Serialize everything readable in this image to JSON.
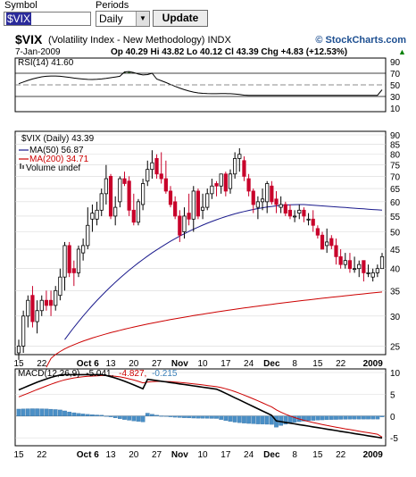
{
  "form": {
    "symbol_label": "Symbol",
    "symbol_value": "$VIX",
    "periods_label": "Periods",
    "periods_value": "Daily",
    "update_label": "Update"
  },
  "header": {
    "ticker": "$VIX",
    "name": "(Volatility Index - New Methodology) INDX",
    "brand": "© StockCharts.com",
    "date": "7-Jan-2009",
    "quote": "Op 40.29  Hi 43.82  Lo 40.12  Cl 43.39  Chg +4.83 (+12.53%)",
    "quote_arrow": "▲"
  },
  "rsi_panel": {
    "legend": "RSI(14) 41.60",
    "ticks": [
      "90",
      "70",
      "50",
      "30",
      "10"
    ]
  },
  "price_panel": {
    "legend_main": "$VIX (Daily) 43.39",
    "legend_ma50": "MA(50) 56.87",
    "legend_ma200": "MA(200) 34.71",
    "legend_volume": "Volume undef",
    "ticks": [
      "90",
      "85",
      "80",
      "75",
      "70",
      "65",
      "60",
      "55",
      "50",
      "45",
      "40",
      "35",
      "30",
      "25"
    ]
  },
  "macd_panel": {
    "legend_prefix": "MACD(12,26,9)",
    "macd_value": "-5.041,",
    "signal_value": "-4.827,",
    "hist_value": "-0.215",
    "ticks": [
      "10",
      "5",
      "0",
      "-5"
    ]
  },
  "x_axis": {
    "labels": [
      "15",
      "22",
      "Oct 6",
      "13",
      "20",
      "27",
      "Nov",
      "10",
      "17",
      "24",
      "Dec",
      "8",
      "15",
      "22",
      "2009"
    ]
  },
  "colors": {
    "up": "#ffffff",
    "down": "#c8002a",
    "ma50": "#1a1a8c",
    "ma200": "#cc0000",
    "rsi_fill": "#4d8a3d",
    "hist": "#4a8fc6",
    "macd_signal": "#cc0000",
    "brand_blue": "#1d4f91"
  },
  "chart_data": [
    {
      "type": "candlestick",
      "title": "$VIX (Daily) 43.39",
      "x": [
        "Sep 15",
        "Sep 16",
        "Sep 17",
        "Sep 18",
        "Sep 19",
        "Sep 22",
        "Sep 23",
        "Sep 24",
        "Sep 25",
        "Sep 26",
        "Sep 29",
        "Sep 30",
        "Oct 1",
        "Oct 2",
        "Oct 3",
        "Oct 6",
        "Oct 7",
        "Oct 8",
        "Oct 9",
        "Oct 10",
        "Oct 13",
        "Oct 14",
        "Oct 15",
        "Oct 16",
        "Oct 17",
        "Oct 20",
        "Oct 21",
        "Oct 22",
        "Oct 23",
        "Oct 24",
        "Oct 27",
        "Oct 28",
        "Oct 29",
        "Oct 30",
        "Oct 31",
        "Nov 3",
        "Nov 4",
        "Nov 5",
        "Nov 6",
        "Nov 7",
        "Nov 10",
        "Nov 11",
        "Nov 12",
        "Nov 13",
        "Nov 14",
        "Nov 17",
        "Nov 18",
        "Nov 19",
        "Nov 20",
        "Nov 21",
        "Nov 24",
        "Nov 25",
        "Nov 26",
        "Nov 28",
        "Dec 1",
        "Dec 2",
        "Dec 3",
        "Dec 4",
        "Dec 5",
        "Dec 8",
        "Dec 9",
        "Dec 10",
        "Dec 11",
        "Dec 12",
        "Dec 15",
        "Dec 16",
        "Dec 17",
        "Dec 18",
        "Dec 19",
        "Dec 22",
        "Dec 23",
        "Dec 24",
        "Dec 26",
        "Dec 29",
        "Dec 30",
        "Dec 31",
        "Jan 2",
        "Jan 5",
        "Jan 6",
        "Jan 7"
      ],
      "open": [
        24,
        25,
        30,
        34,
        29,
        31,
        33,
        33,
        32,
        34,
        38,
        46,
        40,
        39,
        44,
        46,
        54,
        54,
        57,
        63,
        70,
        55,
        60,
        69,
        68,
        57,
        53,
        59,
        68,
        73,
        78,
        71,
        69,
        64,
        60,
        55,
        50,
        56,
        54,
        64,
        57,
        58,
        63,
        67,
        66,
        71,
        65,
        71,
        78,
        77,
        69,
        64,
        58,
        60,
        60,
        66,
        61,
        58,
        59,
        57,
        55,
        56,
        57,
        54,
        54,
        51,
        49,
        46,
        48,
        46,
        43,
        41,
        42,
        40,
        40,
        42,
        39,
        38,
        39,
        40
      ],
      "high": [
        26,
        31,
        34,
        36,
        33,
        34,
        35,
        35,
        36,
        40,
        47,
        47,
        42,
        46,
        48,
        58,
        59,
        60,
        65,
        75,
        71,
        62,
        70,
        72,
        70,
        63,
        61,
        69,
        77,
        82,
        80,
        81,
        77,
        66,
        62,
        57,
        58,
        63,
        66,
        65,
        63,
        65,
        69,
        68,
        71,
        72,
        73,
        81,
        83,
        79,
        71,
        65,
        62,
        65,
        68,
        68,
        64,
        62,
        60,
        59,
        57,
        59,
        58,
        56,
        57,
        52,
        50,
        51,
        49,
        48,
        45,
        44,
        44,
        43,
        42,
        42,
        41,
        40,
        41,
        44
      ],
      "low": [
        23,
        24,
        28,
        28,
        27,
        30,
        31,
        30,
        31,
        33,
        35,
        38,
        36,
        38,
        42,
        45,
        50,
        52,
        55,
        59,
        54,
        52,
        58,
        66,
        55,
        52,
        52,
        57,
        66,
        69,
        69,
        67,
        63,
        58,
        54,
        47,
        48,
        52,
        50,
        54,
        54,
        57,
        61,
        62,
        63,
        62,
        63,
        69,
        72,
        68,
        62,
        56,
        54,
        57,
        56,
        59,
        56,
        56,
        55,
        54,
        53,
        54,
        53,
        52,
        50,
        48,
        45,
        44,
        45,
        41,
        40,
        40,
        39,
        39,
        38,
        37,
        38,
        37,
        38,
        40
      ],
      "close": [
        25,
        30,
        33,
        29,
        31,
        33,
        32,
        32,
        35,
        38,
        46,
        39,
        39,
        45,
        46,
        52,
        56,
        57,
        63,
        69,
        55,
        58,
        69,
        67,
        57,
        53,
        60,
        67,
        73,
        76,
        71,
        69,
        64,
        59,
        55,
        49,
        55,
        54,
        64,
        55,
        58,
        63,
        66,
        66,
        71,
        64,
        71,
        78,
        80,
        70,
        64,
        59,
        60,
        61,
        67,
        60,
        59,
        59,
        56,
        55,
        55,
        57,
        55,
        54,
        52,
        49,
        45,
        47,
        46,
        43,
        41,
        42,
        40,
        40,
        41,
        39,
        39,
        39,
        40,
        43
      ],
      "ma50_range": [
        26,
        59,
        57
      ],
      "ma200_range": [
        22,
        35,
        34.71
      ],
      "ylim": [
        24,
        90
      ],
      "y_scale": "log",
      "legend": [
        "$VIX (Daily) 43.39",
        "MA(50) 56.87",
        "MA(200) 34.71",
        "Volume undef"
      ]
    },
    {
      "type": "line",
      "title": "RSI(14) 41.60",
      "ylim": [
        10,
        90
      ],
      "reference_lines": [
        70,
        50,
        30
      ],
      "last": 41.6
    },
    {
      "type": "line+bar",
      "title": "MACD(12,26,9)",
      "series": [
        {
          "name": "MACD",
          "last": -5.041
        },
        {
          "name": "Signal",
          "last": -4.827
        },
        {
          "name": "Histogram",
          "last": -0.215
        }
      ],
      "ylim": [
        -6,
        10
      ]
    }
  ]
}
